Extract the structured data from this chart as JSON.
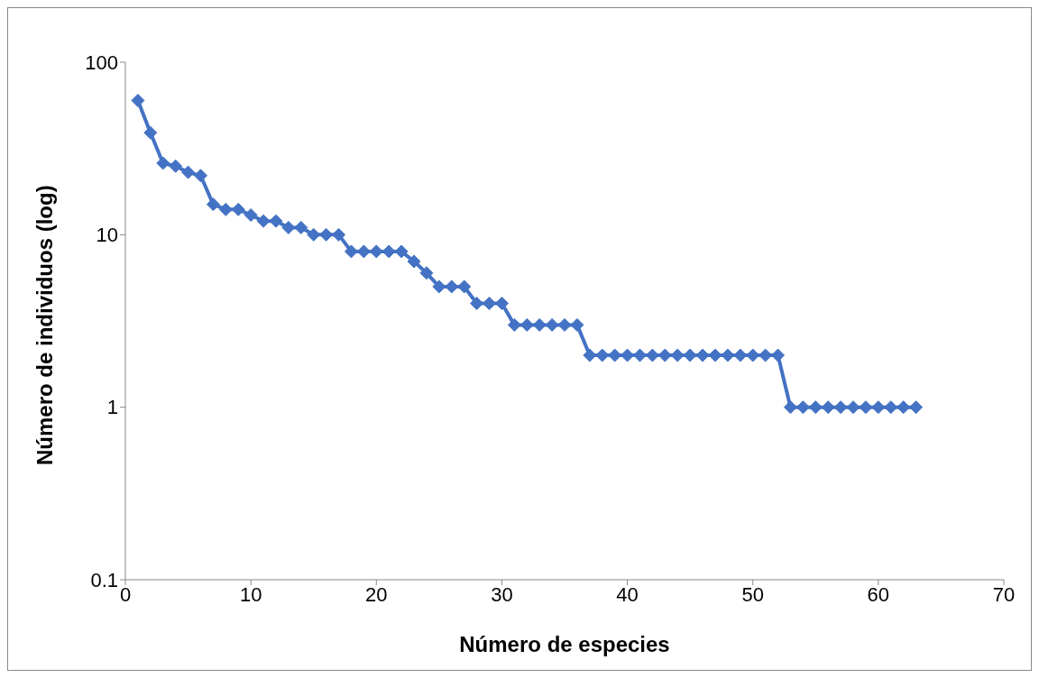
{
  "chart_data": {
    "type": "line",
    "xlabel": "Número de especies",
    "ylabel": "Número de individuos (log)",
    "x": [
      1,
      2,
      3,
      4,
      5,
      6,
      7,
      8,
      9,
      10,
      11,
      12,
      13,
      14,
      15,
      16,
      17,
      18,
      19,
      20,
      21,
      22,
      23,
      24,
      25,
      26,
      27,
      28,
      29,
      30,
      31,
      32,
      33,
      34,
      35,
      36,
      37,
      38,
      39,
      40,
      41,
      42,
      43,
      44,
      45,
      46,
      47,
      48,
      49,
      50,
      51,
      52,
      53,
      54,
      55,
      56,
      57,
      58,
      59,
      60,
      61,
      62,
      63
    ],
    "series": [
      {
        "color": "#4472c4",
        "values": [
          60,
          39,
          26,
          25,
          23,
          22,
          15,
          14,
          14,
          13,
          12,
          12,
          11,
          11,
          10,
          10,
          10,
          8,
          8,
          8,
          8,
          8,
          7,
          6,
          5,
          5,
          5,
          4,
          4,
          4,
          3,
          3,
          3,
          3,
          3,
          3,
          2,
          2,
          2,
          2,
          2,
          2,
          2,
          2,
          2,
          2,
          2,
          2,
          2,
          2,
          2,
          2,
          1,
          1,
          1,
          1,
          1,
          1,
          1,
          1,
          1,
          1,
          1
        ]
      }
    ],
    "xlim": [
      0,
      70
    ],
    "xticks": [
      0,
      10,
      20,
      30,
      40,
      50,
      60,
      70
    ],
    "ylim": [
      0.1,
      100
    ],
    "yticks": [
      0.1,
      1,
      10,
      100
    ],
    "log": "y",
    "grid": false,
    "legend": false,
    "marker": "diamond",
    "line_style": "solid"
  }
}
